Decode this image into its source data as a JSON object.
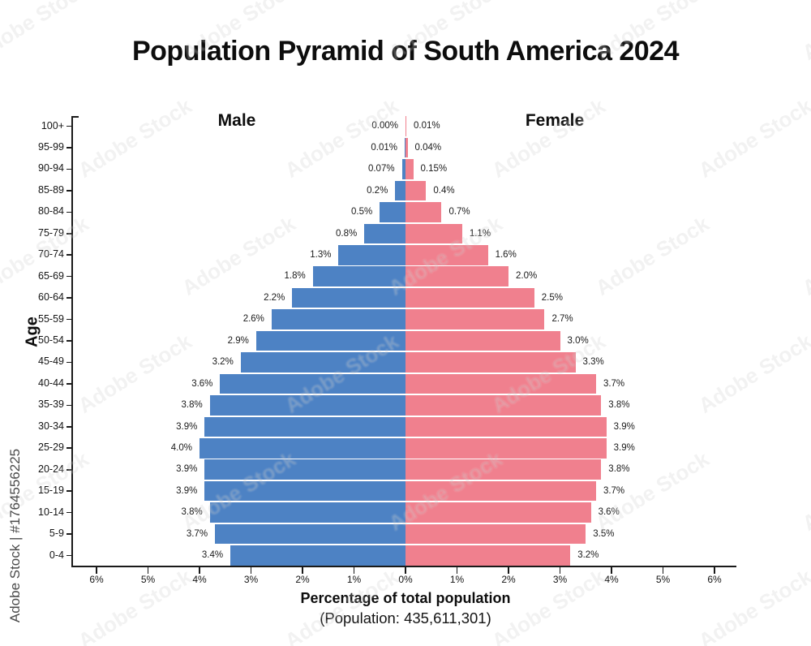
{
  "title": "Population Pyramid of South America 2024",
  "male_label": "Male",
  "female_label": "Female",
  "age_axis_label": "Age",
  "x_axis_label": "Percentage of total population",
  "population_note": "(Population: 435,611,301)",
  "watermark": {
    "side_text": "Adobe Stock | #1764556225",
    "tile_text": "Adobe Stock"
  },
  "colors": {
    "male_bar": "#4d82c4",
    "female_bar": "#f0808e",
    "axis": "#1a1a1a"
  },
  "x_ticks": [
    "6%",
    "5%",
    "4%",
    "3%",
    "2%",
    "1%",
    "0%",
    "1%",
    "2%",
    "3%",
    "4%",
    "5%",
    "6%"
  ],
  "chart_data": {
    "type": "bar",
    "subtype": "population-pyramid",
    "title": "Population Pyramid of South America 2024",
    "xlabel": "Percentage of total population",
    "ylabel": "Age",
    "xlim_percent_each_side": [
      0,
      6
    ],
    "grid": false,
    "legend_position": "top-inside (Male left, Female right)",
    "categories_top_to_bottom": [
      "100+",
      "95-99",
      "90-94",
      "85-89",
      "80-84",
      "75-79",
      "70-74",
      "65-69",
      "60-64",
      "55-59",
      "50-54",
      "45-49",
      "40-44",
      "35-39",
      "30-34",
      "25-29",
      "20-24",
      "15-19",
      "10-14",
      "5-9",
      "0-4"
    ],
    "series": [
      {
        "name": "Male",
        "side": "left",
        "color": "#4d82c4",
        "values_percent": [
          0.0,
          0.01,
          0.07,
          0.2,
          0.5,
          0.8,
          1.3,
          1.8,
          2.2,
          2.6,
          2.9,
          3.2,
          3.6,
          3.8,
          3.9,
          4.0,
          3.9,
          3.9,
          3.8,
          3.7,
          3.4
        ],
        "labels": [
          "0.00%",
          "0.01%",
          "0.07%",
          "0.2%",
          "0.5%",
          "0.8%",
          "1.3%",
          "1.8%",
          "2.2%",
          "2.6%",
          "2.9%",
          "3.2%",
          "3.6%",
          "3.8%",
          "3.9%",
          "4.0%",
          "3.9%",
          "3.9%",
          "3.8%",
          "3.7%",
          "3.4%"
        ]
      },
      {
        "name": "Female",
        "side": "right",
        "color": "#f0808e",
        "values_percent": [
          0.01,
          0.04,
          0.15,
          0.4,
          0.7,
          1.1,
          1.6,
          2.0,
          2.5,
          2.7,
          3.0,
          3.3,
          3.7,
          3.8,
          3.9,
          3.9,
          3.8,
          3.7,
          3.6,
          3.5,
          3.2
        ],
        "labels": [
          "0.01%",
          "0.04%",
          "0.15%",
          "0.4%",
          "0.7%",
          "1.1%",
          "1.6%",
          "2.0%",
          "2.5%",
          "2.7%",
          "3.0%",
          "3.3%",
          "3.7%",
          "3.8%",
          "3.9%",
          "3.9%",
          "3.8%",
          "3.7%",
          "3.6%",
          "3.5%",
          "3.2%"
        ]
      }
    ]
  }
}
